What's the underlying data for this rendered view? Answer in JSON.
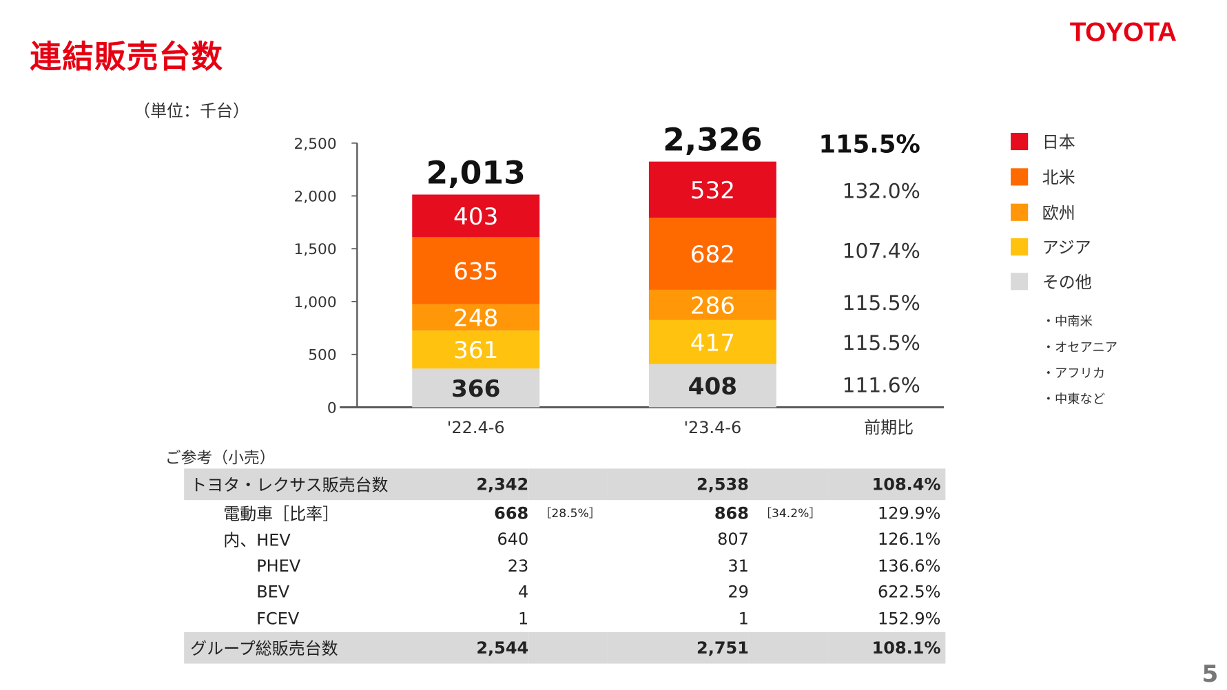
{
  "header": {
    "title": "連結販売台数",
    "logo": "TOYOTA",
    "unit": "（単位：千台）",
    "page_number": "5"
  },
  "colors": {
    "日本": "#e60d1f",
    "北米": "#ff6a00",
    "欧州": "#ff9708",
    "アジア": "#ffc20e",
    "その他": "#d9d9d9",
    "title": "#e60012"
  },
  "chart_data": {
    "type": "bar",
    "stacked": true,
    "categories": [
      "'22.4-6",
      "'23.4-6"
    ],
    "ylim": [
      0,
      2500
    ],
    "yticks": [
      "0",
      "500",
      "1,000",
      "1,500",
      "2,000",
      "2,500"
    ],
    "ytick_values": [
      0,
      500,
      1000,
      1500,
      2000,
      2500
    ],
    "series": [
      {
        "name": "その他",
        "values": [
          366,
          408
        ],
        "yoy": "111.6%"
      },
      {
        "name": "アジア",
        "values": [
          361,
          417
        ],
        "yoy": "115.5%"
      },
      {
        "name": "欧州",
        "values": [
          248,
          286
        ],
        "yoy": "115.5%"
      },
      {
        "name": "北米",
        "values": [
          635,
          682
        ],
        "yoy": "107.4%"
      },
      {
        "name": "日本",
        "values": [
          403,
          532
        ],
        "yoy": "132.0%"
      }
    ],
    "totals": [
      "2,013",
      "2,326"
    ],
    "total_yoy": "115.5%",
    "yoy_label": "前期比",
    "legend": [
      "日本",
      "北米",
      "欧州",
      "アジア",
      "その他"
    ],
    "legend_position": "right",
    "other_notes": [
      "・中南米",
      "・オセアニア",
      "・アフリカ",
      "・中東など"
    ]
  },
  "reference": {
    "title": "ご参考（小売）",
    "rows": [
      {
        "label": "トヨタ・レクサス販売台数",
        "v1": "2,342",
        "r1": "",
        "v2": "2,538",
        "r2": "",
        "yoy": "108.4%",
        "hl": true
      },
      {
        "label": "電動車［比率］",
        "v1": "668",
        "r1": "［28.5%］",
        "v2": "868",
        "r2": "［34.2%］",
        "yoy": "129.9%"
      },
      {
        "label": "内、HEV",
        "v1": "640",
        "r1": "",
        "v2": "807",
        "r2": "",
        "yoy": "126.1%"
      },
      {
        "label": "PHEV",
        "v1": "23",
        "r1": "",
        "v2": "31",
        "r2": "",
        "yoy": "136.6%"
      },
      {
        "label": "BEV",
        "v1": "4",
        "r1": "",
        "v2": "29",
        "r2": "",
        "yoy": "622.5%"
      },
      {
        "label": "FCEV",
        "v1": "1",
        "r1": "",
        "v2": "1",
        "r2": "",
        "yoy": "152.9%"
      },
      {
        "label": "グループ総販売台数",
        "v1": "2,544",
        "r1": "",
        "v2": "2,751",
        "r2": "",
        "yoy": "108.1%",
        "hl": true
      }
    ]
  }
}
